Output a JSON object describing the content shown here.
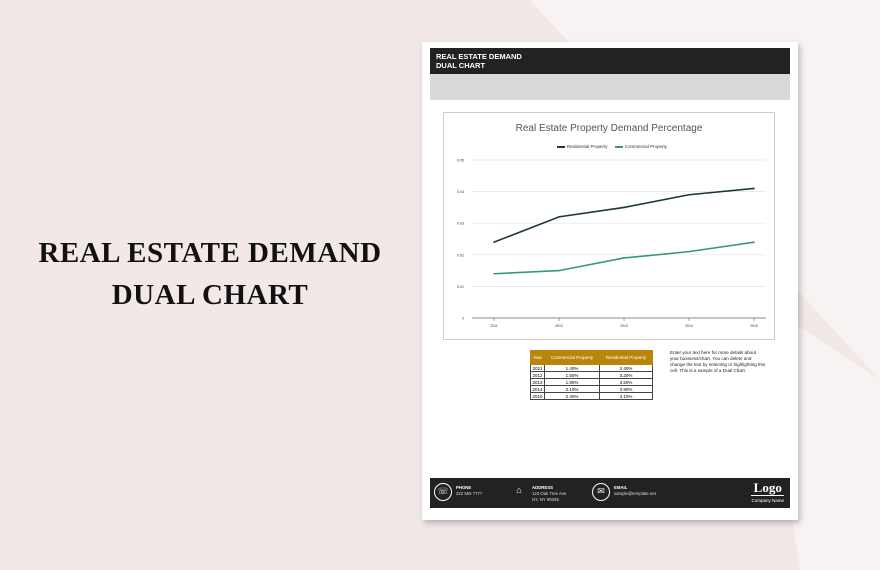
{
  "page_title": "REAL ESTATE DEMAND DUAL CHART",
  "title_lines": [
    "REAL ESTATE DEMAND",
    "DUAL CHART"
  ],
  "document": {
    "header_lines": [
      "REAL ESTATE DEMAND",
      "DUAL CHART"
    ],
    "table": {
      "headers": [
        "Year",
        "Commercial Property",
        "Residential Property"
      ],
      "rows": [
        [
          "2011",
          "1.40%",
          "2.40%"
        ],
        [
          "2012",
          "1.50%",
          "3.20%"
        ],
        [
          "2013",
          "1.90%",
          "3.50%"
        ],
        [
          "2014",
          "2.10%",
          "3.90%"
        ],
        [
          "2015",
          "2.40%",
          "4.10%"
        ]
      ]
    },
    "note": "Enter your text here for more details about your business/chart. You can delete and change the text by selecting or highlighting this cell. This is a sample of a Dual Chart.",
    "footer": {
      "phone_label": "PHONE",
      "phone": "222 555 7777",
      "address_label": "ADDRESS",
      "address_lines": [
        "123 Oak Tree Ave",
        "NY, NY 99336"
      ],
      "email_label": "EMAIL",
      "email": "sample@template.net",
      "logo": "Logo",
      "company": "Company Name"
    }
  },
  "colors": {
    "residential": "#1e3a2a",
    "commercial": "#3a9a6c",
    "table_header": "#b8860b"
  },
  "chart_data": {
    "type": "line",
    "title": "Real Estate Property Demand Percentage",
    "categories": [
      "2011",
      "2012",
      "2013",
      "2014",
      "2015"
    ],
    "series": [
      {
        "name": "Residential Property",
        "values": [
          0.024,
          0.032,
          0.035,
          0.039,
          0.041
        ]
      },
      {
        "name": "Commercial Property",
        "values": [
          0.014,
          0.015,
          0.019,
          0.021,
          0.024
        ]
      }
    ],
    "yticks": [
      "0",
      "0.01",
      "0.02",
      "0.03",
      "0.04",
      "0.05"
    ],
    "ylim": [
      0,
      0.05
    ],
    "grid": true,
    "legend": "top"
  }
}
